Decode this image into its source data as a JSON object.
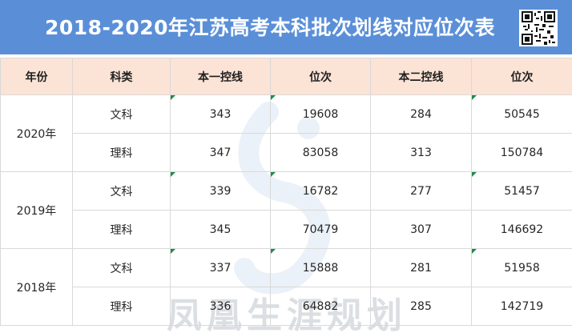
{
  "title": "2018-2020年江苏高考本科批次划线对应位次表",
  "headers": {
    "year": "年份",
    "category": "科类",
    "tier1_line": "本一控线",
    "tier1_rank": "位次",
    "tier2_line": "本二控线",
    "tier2_rank": "位次"
  },
  "rows": [
    {
      "year": "2020年",
      "category": "文科",
      "tier1_line": "343",
      "tier1_rank": "19608",
      "tier2_line": "284",
      "tier2_rank": "50545"
    },
    {
      "year": "2020年",
      "category": "理科",
      "tier1_line": "347",
      "tier1_rank": "83058",
      "tier2_line": "313",
      "tier2_rank": "150784"
    },
    {
      "year": "2019年",
      "category": "文科",
      "tier1_line": "339",
      "tier1_rank": "16782",
      "tier2_line": "277",
      "tier2_rank": "51457"
    },
    {
      "year": "2019年",
      "category": "理科",
      "tier1_line": "345",
      "tier1_rank": "70479",
      "tier2_line": "307",
      "tier2_rank": "146692"
    },
    {
      "year": "2018年",
      "category": "文科",
      "tier1_line": "337",
      "tier1_rank": "15888",
      "tier2_line": "281",
      "tier2_rank": "51958"
    },
    {
      "year": "2018年",
      "category": "理科",
      "tier1_line": "336",
      "tier1_rank": "64882",
      "tier2_line": "285",
      "tier2_rank": "142719"
    }
  ],
  "watermark": "凤凰生涯规划",
  "icons": {
    "qr": "qr-code-icon",
    "watermark_logo": "phoenix-logo-icon"
  },
  "colors": {
    "title_bg": "#5a8fd8",
    "header_bg": "#fbe3d6",
    "cell_marker": "#1f8a4c"
  }
}
